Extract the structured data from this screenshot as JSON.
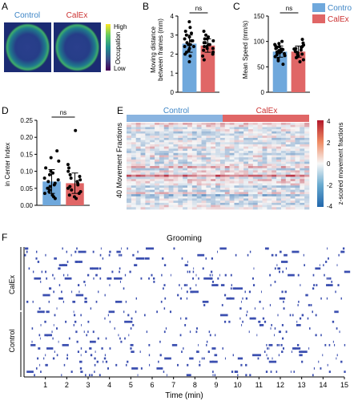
{
  "colors": {
    "control": "#6fa8dc",
    "calex": "#e06666",
    "control_text": "#3d85c6",
    "calex_text": "#cc3333",
    "raster_tick": "#3b4fb0",
    "heat_red": "#c0392b",
    "heat_blue": "#3f6fb5"
  },
  "legend_C": {
    "items": [
      "Contro",
      "CalEx"
    ]
  },
  "panel_A": {
    "letter": "A",
    "labels": [
      "Control",
      "CalEx"
    ],
    "colorbar_label": "Occupation",
    "high": "High",
    "low": "Low"
  },
  "panel_F": {
    "letter": "F",
    "title": "Grooming",
    "xlabel": "Time (min)",
    "group_labels": [
      "CalEx",
      "Control"
    ],
    "xticks": [
      "1",
      "2",
      "3",
      "4",
      "5",
      "6",
      "7",
      "8",
      "9",
      "10",
      "11",
      "12",
      "13",
      "14",
      "15"
    ]
  },
  "chart_data": [
    {
      "panel": "B",
      "letter": "B",
      "type": "bar",
      "categories": [
        "Control",
        "CalEx"
      ],
      "values": [
        2.55,
        2.45
      ],
      "errors": [
        0.45,
        0.35
      ],
      "points": [
        [
          1.6,
          1.9,
          2.0,
          2.1,
          2.2,
          2.3,
          2.4,
          2.4,
          2.5,
          2.5,
          2.6,
          2.7,
          2.7,
          2.8,
          2.9,
          3.0,
          3.1,
          3.2,
          3.4,
          3.7
        ],
        [
          1.7,
          1.9,
          2.0,
          2.1,
          2.2,
          2.3,
          2.3,
          2.4,
          2.4,
          2.5,
          2.5,
          2.6,
          2.6,
          2.7,
          2.8,
          2.8,
          2.9,
          3.0,
          3.2
        ]
      ],
      "ylabel_lines": [
        "Moving distance",
        "between frames (mm)"
      ],
      "ylim": [
        0,
        4
      ],
      "yticks": [
        "0",
        "1",
        "2",
        "3",
        "4"
      ],
      "significance": "ns"
    },
    {
      "panel": "C",
      "letter": "C",
      "type": "bar",
      "categories": [
        "Control",
        "CalEx"
      ],
      "values": [
        80,
        80
      ],
      "errors": [
        11,
        11
      ],
      "points": [
        [
          55,
          62,
          66,
          70,
          72,
          74,
          76,
          78,
          79,
          80,
          82,
          84,
          85,
          86,
          88,
          90,
          92,
          94,
          96,
          100
        ],
        [
          60,
          64,
          68,
          70,
          72,
          74,
          75,
          77,
          78,
          80,
          81,
          83,
          85,
          86,
          88,
          90,
          93,
          97,
          104
        ]
      ],
      "ylabel_lines": [
        "Mean Speed (mm/s)"
      ],
      "ylim": [
        0,
        150
      ],
      "yticks": [
        "0",
        "50",
        "100",
        "150"
      ],
      "significance": "ns"
    },
    {
      "panel": "D",
      "letter": "D",
      "type": "bar",
      "categories": [
        "Control",
        "CalEx"
      ],
      "values": [
        0.07,
        0.065
      ],
      "errors": [
        0.035,
        0.03
      ],
      "points": [
        [
          0.02,
          0.025,
          0.03,
          0.035,
          0.04,
          0.045,
          0.05,
          0.055,
          0.06,
          0.065,
          0.07,
          0.075,
          0.08,
          0.09,
          0.095,
          0.1,
          0.11,
          0.13,
          0.14,
          0.16
        ],
        [
          0.02,
          0.025,
          0.03,
          0.035,
          0.04,
          0.045,
          0.05,
          0.055,
          0.06,
          0.065,
          0.07,
          0.075,
          0.08,
          0.085,
          0.09,
          0.1,
          0.11,
          0.12,
          0.22
        ]
      ],
      "ylabel_lines": [
        "in Center Index"
      ],
      "ylim": [
        0,
        0.25
      ],
      "yticks": [
        "0.00",
        "0.05",
        "0.10",
        "0.15",
        "0.20",
        "0.25"
      ],
      "significance": "ns"
    },
    {
      "panel": "E",
      "letter": "E",
      "type": "heatmap",
      "rows": 40,
      "columns_per_group": [
        20,
        19
      ],
      "group_labels": [
        "Control",
        "CalEx"
      ],
      "ylabel": "40 Movement Fractions",
      "colorbar_label": "z-scored movement fractions",
      "colorbar_range": [
        -4,
        4
      ],
      "colorbar_ticks": [
        "4",
        "2",
        "0",
        "-2",
        "-4"
      ]
    }
  ]
}
